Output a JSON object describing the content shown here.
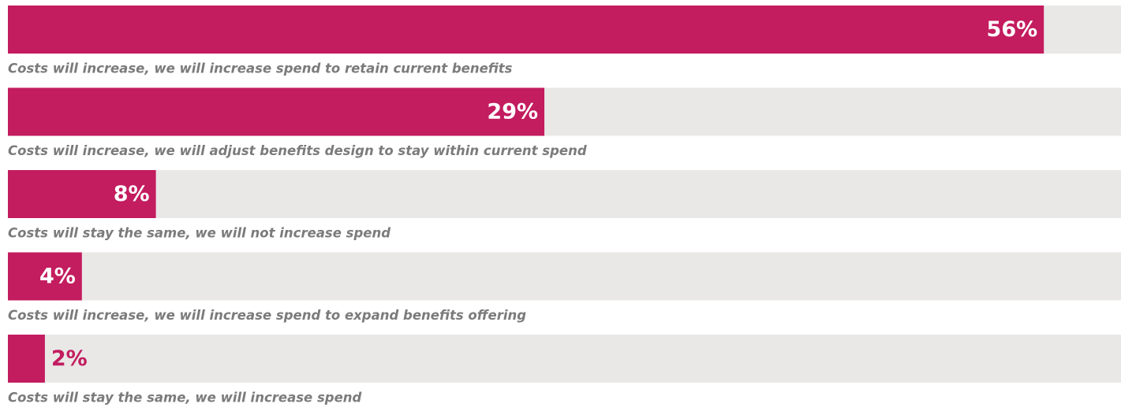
{
  "chart_data": {
    "type": "bar",
    "orientation": "horizontal",
    "categories": [
      "Costs will increase, we will increase spend to retain current benefits",
      "Costs will increase, we will adjust benefits design to stay within current spend",
      "Costs will stay the same, we will not increase spend",
      "Costs will increase, we will increase spend to expand benefits offering",
      "Costs will stay the same, we will increase spend"
    ],
    "values": [
      56,
      29,
      8,
      4,
      2
    ],
    "value_labels": [
      "56%",
      "29%",
      "8%",
      "4%",
      "2%"
    ],
    "color": "#c31c5f",
    "track_color": "#e9e8e7",
    "xlim": [
      0,
      60
    ]
  }
}
